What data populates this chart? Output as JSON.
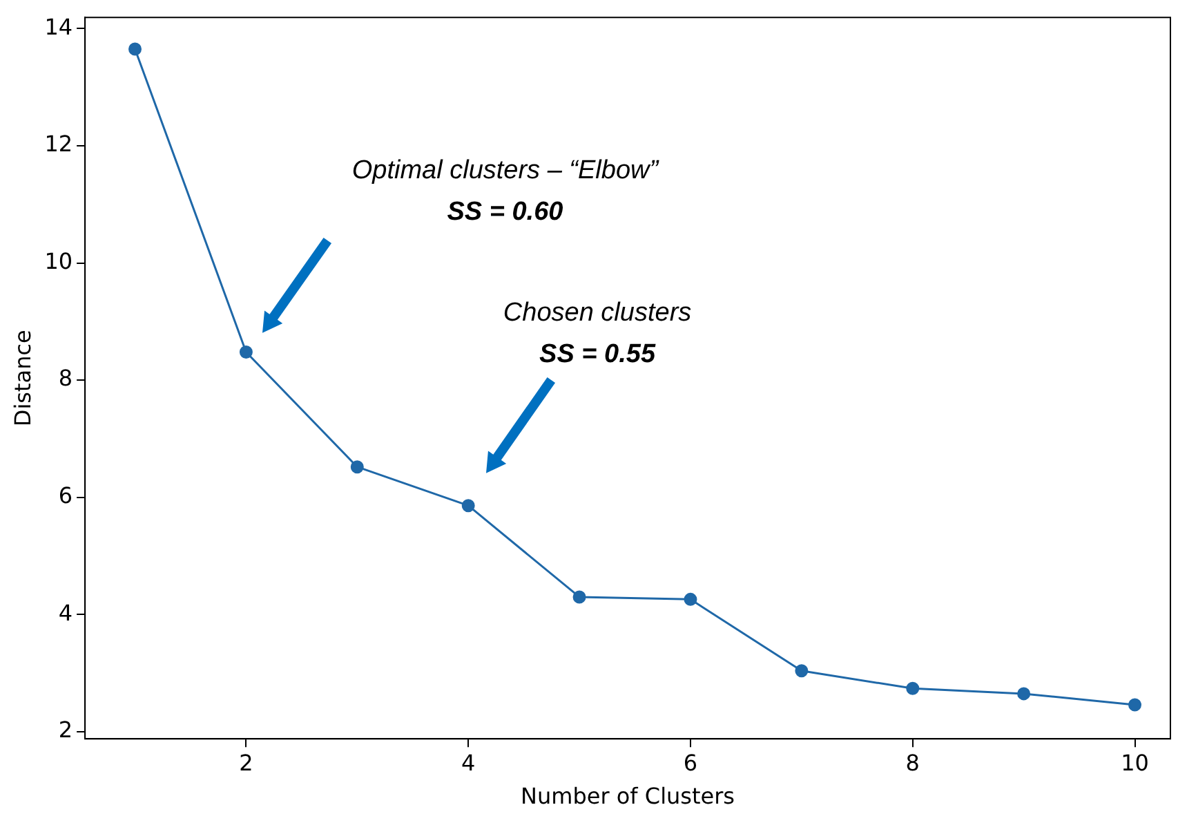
{
  "chart_data": {
    "type": "line",
    "xlabel": "Number of Clusters",
    "ylabel": "Distance",
    "x": [
      1,
      2,
      3,
      4,
      5,
      6,
      7,
      8,
      9,
      10
    ],
    "series": [
      {
        "color": "#1f68a8",
        "values": [
          13.65,
          8.48,
          6.52,
          5.86,
          4.3,
          4.26,
          3.04,
          2.74,
          2.65,
          2.46
        ]
      }
    ],
    "xlim": [
      0.55,
      10.32
    ],
    "ylim": [
      1.88,
      14.19
    ],
    "xticks": [
      2,
      4,
      6,
      8,
      10
    ],
    "yticks": [
      2,
      4,
      6,
      8,
      10,
      12,
      14
    ],
    "grid": false,
    "legend": false,
    "marker": "circle",
    "line_style": "solid",
    "annotations": [
      "Optimal clusters – “Elbow”\nSS = 0.60",
      "Chosen clusters\nSS = 0.55"
    ]
  }
}
